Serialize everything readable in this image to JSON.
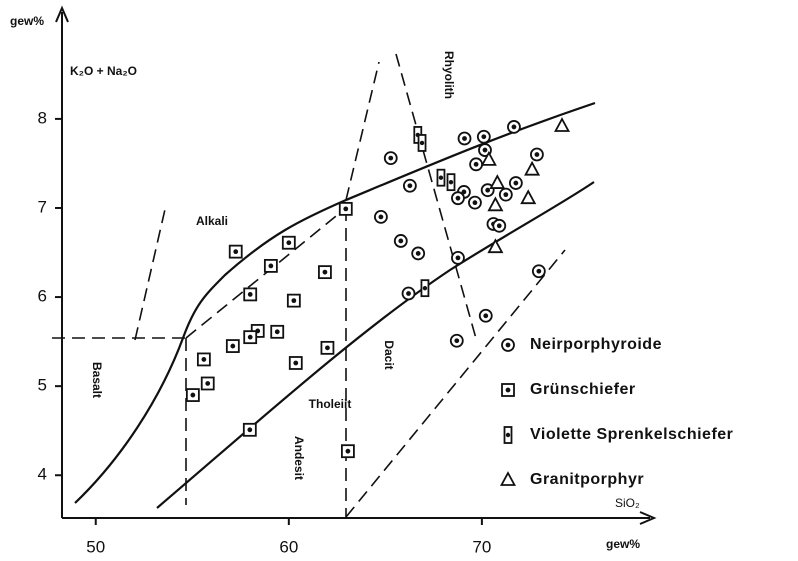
{
  "chart_data": {
    "type": "scatter",
    "x_label": "SiO₂",
    "x_unit": "gew%",
    "y_unit": "gew%",
    "y_label": "K₂O + Na₂O",
    "xlim": [
      48.2,
      78.5
    ],
    "ylim": [
      3.52,
      9.2
    ],
    "xticks": [
      50,
      60,
      70
    ],
    "yticks": [
      4,
      5,
      6,
      7,
      8
    ],
    "annotations": [
      "Rhyolith",
      "Alkali",
      "Basalt",
      "Tholeiit",
      "Andesit",
      "Dacit"
    ],
    "series": [
      {
        "name": "Neirporphyroide",
        "marker": "circle",
        "color": "#111111",
        "x": [
          65.28,
          69.1,
          70.1,
          71.66,
          72.85,
          70.16,
          69.7,
          66.27,
          69.07,
          68.76,
          69.64,
          70.3,
          71.76,
          71.24,
          64.77,
          65.8,
          66.7,
          70.6,
          70.9,
          68.76,
          66.2,
          70.2,
          68.7,
          72.95
        ],
        "values": [
          7.56,
          7.78,
          7.8,
          7.91,
          7.6,
          7.65,
          7.49,
          7.25,
          7.18,
          7.11,
          7.06,
          7.2,
          7.28,
          7.15,
          6.9,
          6.63,
          6.49,
          6.82,
          6.8,
          6.44,
          6.04,
          5.79,
          5.51,
          6.29
        ]
      },
      {
        "name": "Grünschiefer",
        "marker": "square",
        "color": "#111111",
        "x": [
          62.95,
          57.25,
          60.0,
          59.07,
          58.0,
          61.87,
          60.26,
          58.39,
          58.0,
          59.4,
          57.1,
          55.6,
          62.0,
          60.36,
          55.8,
          55.03,
          57.98,
          63.06
        ],
        "values": [
          6.99,
          6.51,
          6.61,
          6.35,
          6.03,
          6.28,
          5.96,
          5.62,
          5.55,
          5.61,
          5.45,
          5.3,
          5.43,
          5.26,
          5.03,
          4.9,
          4.51,
          4.27
        ]
      },
      {
        "name": "Violette Sprenkelschiefer",
        "marker": "tall-rect",
        "color": "#111111",
        "x": [
          66.68,
          66.9,
          67.88,
          68.4,
          67.05
        ],
        "values": [
          7.82,
          7.73,
          7.34,
          7.29,
          6.1
        ]
      },
      {
        "name": "Granitporphyr",
        "marker": "triangle",
        "color": "#111111",
        "x": [
          74.15,
          70.36,
          70.8,
          72.6,
          72.4,
          70.7,
          70.7
        ],
        "values": [
          7.92,
          7.54,
          7.28,
          7.43,
          7.11,
          7.03,
          6.56
        ]
      }
    ]
  }
}
